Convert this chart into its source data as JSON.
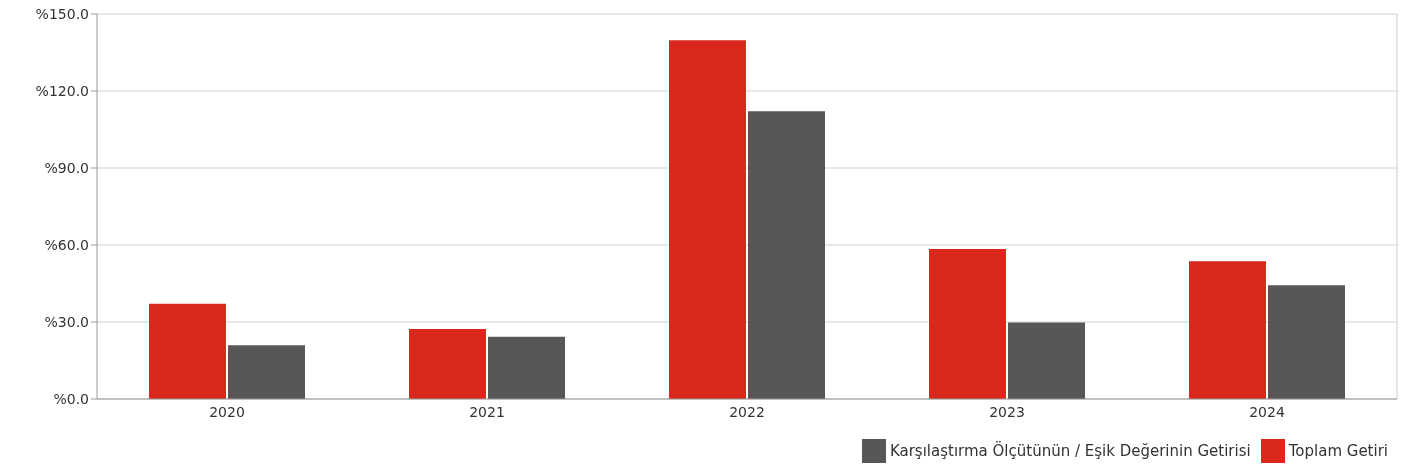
{
  "chart_data": {
    "type": "bar",
    "categories": [
      "2020",
      "2021",
      "2022",
      "2023",
      "2024"
    ],
    "series": [
      {
        "name": "Toplam Getiri",
        "color": "#d9291c",
        "values": [
          37.1,
          27.3,
          139.8,
          58.4,
          53.7
        ]
      },
      {
        "name": "Karşılaştırma Ölçütünün / Eşik Değerinin Getirisi",
        "color": "#555759",
        "values": [
          20.9,
          24.3,
          112.1,
          29.8,
          44.3
        ]
      }
    ],
    "ylim": [
      0,
      150
    ],
    "yticks": [
      {
        "value": 0,
        "label": "%0.0"
      },
      {
        "value": 30,
        "label": "%30.0"
      },
      {
        "value": 60,
        "label": "%60.0"
      },
      {
        "value": 90,
        "label": "%90.0"
      },
      {
        "value": 120,
        "label": "%120.0"
      },
      {
        "value": 150,
        "label": "%150.0"
      }
    ],
    "grid": "y",
    "legend": "bottom right"
  }
}
